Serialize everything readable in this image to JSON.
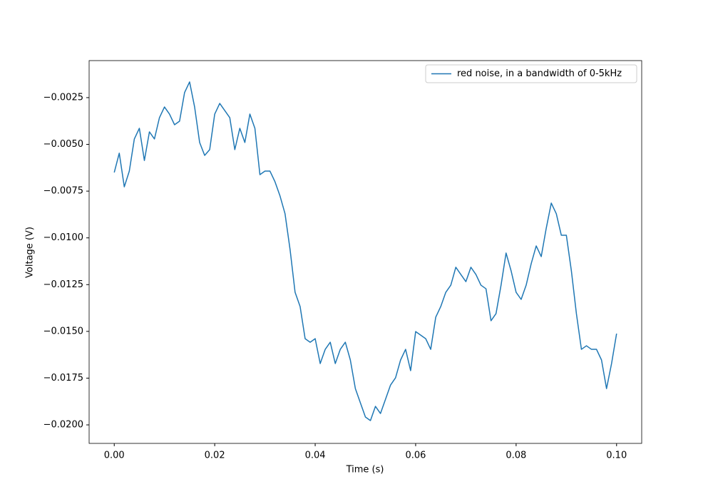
{
  "chart_data": {
    "type": "line",
    "xlabel": "Time (s)",
    "ylabel": "Voltage (V)",
    "x": [
      0.0,
      0.001,
      0.002,
      0.003,
      0.004,
      0.005,
      0.006,
      0.007,
      0.008,
      0.009,
      0.01,
      0.011,
      0.012,
      0.013,
      0.014,
      0.015,
      0.016,
      0.017,
      0.018,
      0.019,
      0.02,
      0.021,
      0.022,
      0.023,
      0.024,
      0.025,
      0.026,
      0.027,
      0.028,
      0.029,
      0.03,
      0.031,
      0.032,
      0.033,
      0.034,
      0.035,
      0.036,
      0.037,
      0.038,
      0.039,
      0.04,
      0.041,
      0.042,
      0.043,
      0.044,
      0.045,
      0.046,
      0.047,
      0.048,
      0.049,
      0.05,
      0.051,
      0.052,
      0.053,
      0.054,
      0.055,
      0.056,
      0.057,
      0.058,
      0.059,
      0.06,
      0.061,
      0.062,
      0.063,
      0.064,
      0.065,
      0.066,
      0.067,
      0.068,
      0.069,
      0.07,
      0.071,
      0.072,
      0.073,
      0.074,
      0.075,
      0.076,
      0.077,
      0.078,
      0.079,
      0.08,
      0.081,
      0.082,
      0.083,
      0.084,
      0.085,
      0.086,
      0.087,
      0.088,
      0.089,
      0.09,
      0.091,
      0.092,
      0.093,
      0.094,
      0.095,
      0.096,
      0.097,
      0.098,
      0.099,
      0.1
    ],
    "series": [
      {
        "name": "red noise, in a bandwidth of 0-5kHz",
        "color": "#1f77b4",
        "values": [
          -0.0065,
          -0.00547,
          -0.00727,
          -0.00643,
          -0.00471,
          -0.00414,
          -0.00586,
          -0.00433,
          -0.00471,
          -0.00357,
          -0.003,
          -0.00338,
          -0.00395,
          -0.00376,
          -0.00223,
          -0.00166,
          -0.003,
          -0.0049,
          -0.00559,
          -0.00528,
          -0.00338,
          -0.00281,
          -0.00319,
          -0.00357,
          -0.00528,
          -0.00414,
          -0.0049,
          -0.00338,
          -0.00414,
          -0.00662,
          -0.00643,
          -0.00643,
          -0.007,
          -0.00776,
          -0.00871,
          -0.01062,
          -0.01291,
          -0.01367,
          -0.01539,
          -0.01558,
          -0.01539,
          -0.01672,
          -0.01596,
          -0.01558,
          -0.01672,
          -0.01596,
          -0.01558,
          -0.01653,
          -0.01806,
          -0.01882,
          -0.01958,
          -0.01977,
          -0.01901,
          -0.01939,
          -0.01863,
          -0.01787,
          -0.01748,
          -0.01653,
          -0.01596,
          -0.0171,
          -0.01501,
          -0.0152,
          -0.01539,
          -0.01596,
          -0.01424,
          -0.01367,
          -0.01291,
          -0.01253,
          -0.01157,
          -0.01196,
          -0.01234,
          -0.01157,
          -0.01196,
          -0.01253,
          -0.01272,
          -0.01443,
          -0.01405,
          -0.01253,
          -0.01081,
          -0.01176,
          -0.01291,
          -0.01329,
          -0.01253,
          -0.01138,
          -0.01043,
          -0.011,
          -0.00948,
          -0.00814,
          -0.00871,
          -0.00986,
          -0.00986,
          -0.01176,
          -0.01405,
          -0.01596,
          -0.01577,
          -0.01596,
          -0.01596,
          -0.01653,
          -0.01806,
          -0.01672,
          -0.01512
        ]
      }
    ],
    "xlim": [
      -0.005,
      0.105
    ],
    "xticks": [
      {
        "value": 0,
        "label": "0.00"
      },
      {
        "value": 0.02,
        "label": "0.02"
      },
      {
        "value": 0.04,
        "label": "0.04"
      },
      {
        "value": 0.06,
        "label": "0.06"
      },
      {
        "value": 0.08,
        "label": "0.08"
      },
      {
        "value": 0.1,
        "label": "0.10"
      }
    ],
    "ylim": [
      -0.02099,
      -0.00052
    ],
    "yticks": [
      {
        "value": -0.02,
        "label": "−0.0200"
      },
      {
        "value": -0.0175,
        "label": "−0.0175"
      },
      {
        "value": -0.015,
        "label": "−0.0150"
      },
      {
        "value": -0.0125,
        "label": "−0.0125"
      },
      {
        "value": -0.01,
        "label": "−0.0100"
      },
      {
        "value": -0.0075,
        "label": "−0.0075"
      },
      {
        "value": -0.005,
        "label": "−0.0050"
      },
      {
        "value": -0.0025,
        "label": "−0.0025"
      }
    ],
    "legend": "upper right",
    "grid": false
  }
}
